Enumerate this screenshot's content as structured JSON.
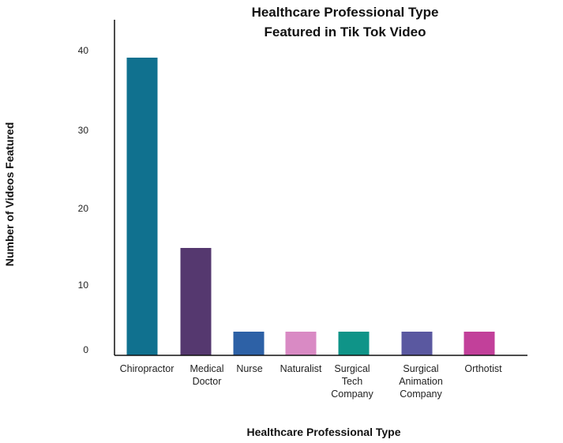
{
  "chart_data": {
    "type": "bar",
    "title_lines": [
      "Healthcare Professional Type",
      "Featured in Tik Tok Video"
    ],
    "xlabel": "Healthcare Professional Type",
    "ylabel": "Number of Videos Featured",
    "ylim": [
      0,
      45
    ],
    "yticks": [
      "0",
      "10",
      "20",
      "30",
      "40"
    ],
    "grid": false,
    "categories": [
      [
        "Chiropractor"
      ],
      [
        "Medical",
        "Doctor"
      ],
      [
        "Nurse"
      ],
      [
        "Naturalist"
      ],
      [
        "Surgical",
        "Tech",
        "Company"
      ],
      [
        "Surgical",
        "Animation",
        "Company"
      ],
      [
        "Orthotist"
      ]
    ],
    "values": [
      40,
      14,
      3,
      3,
      3,
      3,
      3
    ],
    "colors": [
      "#10718f",
      "#55386f",
      "#2d61a6",
      "#d98ac4",
      "#0f9488",
      "#5a58a0",
      "#c2409a"
    ]
  }
}
